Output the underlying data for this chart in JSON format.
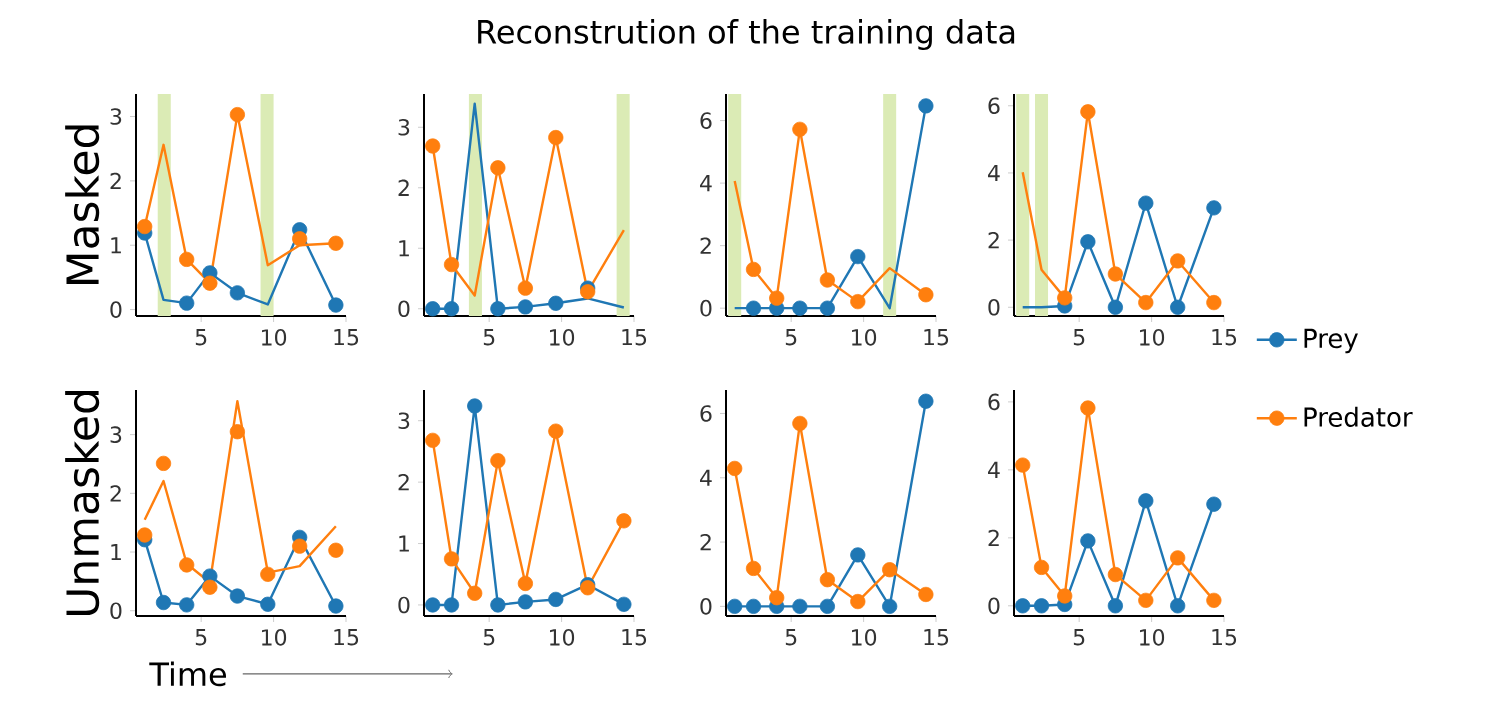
{
  "chart_data": [
    {
      "type": "line",
      "annotations": [
        "Reconstrution of the training data"
      ],
      "ylabel": "Masked",
      "x": [
        1.1,
        2.4,
        4.0,
        5.6,
        7.5,
        9.6,
        11.8,
        14.3
      ],
      "xlim": [
        0.5,
        15
      ],
      "xticks": [
        5,
        10,
        15
      ],
      "ylim": [
        -0.1,
        3.35
      ],
      "yticks": [
        0,
        1,
        2,
        3
      ],
      "marker": "circle",
      "bands": [
        {
          "axis": "x",
          "from": 2.0,
          "to": 2.9,
          "color": "#dbebb5"
        },
        {
          "axis": "x",
          "from": 9.1,
          "to": 10.0,
          "color": "#dbebb5"
        }
      ],
      "series": [
        {
          "marker": "none",
          "color": "#1f77b4",
          "values": [
            1.19,
            0.15,
            0.1,
            0.57,
            0.26,
            0.08,
            1.24,
            0.07
          ]
        },
        {
          "marker": "none",
          "color": "#ff7f0e",
          "values": [
            1.29,
            2.56,
            0.78,
            0.41,
            3.03,
            0.69,
            1.0,
            1.03
          ]
        },
        {
          "type": "scatter",
          "color": "#1f77b4",
          "values": [
            1.19,
            null,
            0.1,
            0.57,
            0.26,
            null,
            1.24,
            0.07
          ]
        },
        {
          "type": "scatter",
          "color": "#ff7f0e",
          "values": [
            1.29,
            null,
            0.78,
            0.41,
            3.03,
            null,
            1.1,
            1.03
          ]
        }
      ]
    },
    {
      "type": "line",
      "x": [
        1.1,
        2.4,
        4.0,
        5.6,
        7.5,
        9.6,
        11.8,
        14.3
      ],
      "xlim": [
        0.5,
        15
      ],
      "xticks": [
        5,
        10,
        15
      ],
      "ylim": [
        -0.12,
        3.55
      ],
      "yticks": [
        0,
        1,
        2,
        3
      ],
      "marker": "circle",
      "bands": [
        {
          "axis": "x",
          "from": 3.6,
          "to": 4.5,
          "color": "#dbebb5"
        },
        {
          "axis": "x",
          "from": 13.8,
          "to": 14.7,
          "color": "#dbebb5"
        }
      ],
      "series": [
        {
          "marker": "none",
          "color": "#1f77b4",
          "values": [
            0,
            0,
            3.39,
            0,
            0.03,
            0.09,
            0.17,
            0.02
          ]
        },
        {
          "marker": "none",
          "color": "#ff7f0e",
          "values": [
            2.69,
            0.73,
            0.22,
            2.33,
            0.34,
            2.83,
            0.28,
            1.3
          ]
        },
        {
          "type": "scatter",
          "color": "#1f77b4",
          "values": [
            0,
            0,
            null,
            0,
            0.03,
            0.09,
            0.34,
            null
          ]
        },
        {
          "type": "scatter",
          "color": "#ff7f0e",
          "values": [
            2.69,
            0.73,
            null,
            2.33,
            0.34,
            2.83,
            0.28,
            null
          ]
        }
      ]
    },
    {
      "type": "line",
      "x": [
        1.1,
        2.4,
        4.0,
        5.6,
        7.5,
        9.6,
        11.8,
        14.3
      ],
      "xlim": [
        0.5,
        15
      ],
      "xticks": [
        5,
        10,
        15
      ],
      "ylim": [
        -0.25,
        6.85
      ],
      "yticks": [
        0,
        2,
        4,
        6
      ],
      "marker": "circle",
      "bands": [
        {
          "axis": "x",
          "from": 0.65,
          "to": 1.55,
          "color": "#dbebb5"
        },
        {
          "axis": "x",
          "from": 11.35,
          "to": 12.25,
          "color": "#dbebb5"
        }
      ],
      "series": [
        {
          "marker": "none",
          "color": "#1f77b4",
          "values": [
            0,
            0,
            0,
            0,
            0,
            1.65,
            0,
            6.47
          ]
        },
        {
          "marker": "none",
          "color": "#ff7f0e",
          "values": [
            4.07,
            1.24,
            0.32,
            5.72,
            0.9,
            0.21,
            1.28,
            0.43
          ]
        },
        {
          "type": "scatter",
          "color": "#1f77b4",
          "values": [
            null,
            0,
            0,
            0,
            0,
            1.65,
            null,
            6.47
          ]
        },
        {
          "type": "scatter",
          "color": "#ff7f0e",
          "values": [
            null,
            1.24,
            0.32,
            5.72,
            0.9,
            0.21,
            null,
            0.43
          ]
        }
      ]
    },
    {
      "type": "line",
      "x": [
        1.1,
        2.4,
        4.0,
        5.6,
        7.5,
        9.6,
        11.8,
        14.3
      ],
      "xlim": [
        0.5,
        15
      ],
      "xticks": [
        5,
        10,
        15
      ],
      "ylim": [
        -0.26,
        6.35
      ],
      "yticks": [
        0,
        2,
        4,
        6
      ],
      "marker": "circle",
      "legend": "right",
      "bands": [
        {
          "axis": "x",
          "from": 0.65,
          "to": 1.55,
          "color": "#dbebb5"
        },
        {
          "axis": "x",
          "from": 1.95,
          "to": 2.85,
          "color": "#dbebb5"
        }
      ],
      "series": [
        {
          "marker": "none",
          "color": "#1f77b4",
          "values": [
            0,
            0,
            0.04,
            1.95,
            0,
            3.1,
            0,
            2.96
          ]
        },
        {
          "marker": "none",
          "color": "#ff7f0e",
          "values": [
            4.02,
            1.12,
            0.28,
            5.82,
            0.99,
            0.14,
            1.38,
            0.14
          ]
        },
        {
          "type": "scatter",
          "name": "Prey",
          "color": "#1f77b4",
          "values": [
            null,
            null,
            0.04,
            1.95,
            0,
            3.1,
            0,
            2.96
          ]
        },
        {
          "type": "scatter",
          "name": "Predator",
          "color": "#ff7f0e",
          "values": [
            null,
            null,
            0.28,
            5.82,
            0.99,
            0.14,
            1.38,
            0.14
          ]
        }
      ]
    },
    {
      "type": "line",
      "ylabel": "Unmasked",
      "xlabel": "Time",
      "x": [
        1.1,
        2.4,
        4.0,
        5.6,
        7.5,
        9.6,
        11.8,
        14.3
      ],
      "xlim": [
        0.5,
        15
      ],
      "xticks": [
        5,
        10,
        15
      ],
      "ylim": [
        -0.09,
        3.76
      ],
      "yticks": [
        0,
        1,
        2,
        3
      ],
      "marker": "circle",
      "series": [
        {
          "marker": "none",
          "color": "#1f77b4",
          "values": [
            1.21,
            0.14,
            0.1,
            0.59,
            0.25,
            0.11,
            1.25,
            0.08
          ]
        },
        {
          "marker": "none",
          "color": "#ff7f0e",
          "values": [
            1.55,
            2.21,
            0.8,
            0.48,
            3.57,
            0.65,
            0.76,
            1.44
          ]
        },
        {
          "type": "scatter",
          "color": "#1f77b4",
          "values": [
            1.21,
            0.14,
            0.1,
            0.59,
            0.25,
            0.11,
            1.25,
            0.08
          ]
        },
        {
          "type": "scatter",
          "color": "#ff7f0e",
          "values": [
            1.29,
            2.51,
            0.78,
            0.4,
            3.05,
            0.62,
            1.1,
            1.03
          ]
        }
      ]
    },
    {
      "type": "line",
      "x": [
        1.1,
        2.4,
        4.0,
        5.6,
        7.5,
        9.6,
        11.8,
        14.3
      ],
      "xlim": [
        0.5,
        15
      ],
      "xticks": [
        5,
        10,
        15
      ],
      "ylim": [
        -0.18,
        3.5
      ],
      "yticks": [
        0,
        1,
        2,
        3
      ],
      "marker": "circle",
      "series": [
        {
          "marker": "none",
          "color": "#1f77b4",
          "values": [
            0,
            0,
            3.24,
            0,
            0.05,
            0.09,
            0.33,
            0.01
          ]
        },
        {
          "marker": "none",
          "color": "#ff7f0e",
          "values": [
            2.68,
            0.75,
            0.19,
            2.35,
            0.35,
            2.83,
            0.28,
            1.37
          ]
        },
        {
          "type": "scatter",
          "color": "#1f77b4",
          "values": [
            0,
            0,
            3.24,
            0,
            0.05,
            0.09,
            0.33,
            0.01
          ]
        },
        {
          "type": "scatter",
          "color": "#ff7f0e",
          "values": [
            2.68,
            0.75,
            0.19,
            2.35,
            0.35,
            2.83,
            0.28,
            1.37
          ]
        }
      ]
    },
    {
      "type": "line",
      "x": [
        1.1,
        2.4,
        4.0,
        5.6,
        7.5,
        9.6,
        11.8,
        14.3
      ],
      "xlim": [
        0.5,
        15
      ],
      "xticks": [
        5,
        10,
        15
      ],
      "ylim": [
        -0.3,
        6.73
      ],
      "yticks": [
        0,
        2,
        4,
        6
      ],
      "marker": "circle",
      "series": [
        {
          "marker": "none",
          "color": "#1f77b4",
          "values": [
            0,
            0,
            0,
            0,
            0,
            1.6,
            0,
            6.38
          ]
        },
        {
          "marker": "none",
          "color": "#ff7f0e",
          "values": [
            4.29,
            1.18,
            0.27,
            5.69,
            0.83,
            0.15,
            1.14,
            0.37
          ]
        },
        {
          "type": "scatter",
          "color": "#1f77b4",
          "values": [
            0,
            0,
            0,
            0,
            0,
            1.6,
            0,
            6.38
          ]
        },
        {
          "type": "scatter",
          "color": "#ff7f0e",
          "values": [
            4.29,
            1.18,
            0.27,
            5.69,
            0.83,
            0.15,
            1.14,
            0.37
          ]
        }
      ]
    },
    {
      "type": "line",
      "x": [
        1.1,
        2.4,
        4.0,
        5.6,
        7.5,
        9.6,
        11.8,
        14.3
      ],
      "xlim": [
        0.5,
        15
      ],
      "xticks": [
        5,
        10,
        15
      ],
      "ylim": [
        -0.3,
        6.35
      ],
      "yticks": [
        0,
        2,
        4,
        6
      ],
      "marker": "circle",
      "series": [
        {
          "marker": "none",
          "color": "#1f77b4",
          "values": [
            0,
            0,
            0.04,
            1.91,
            0,
            3.09,
            0,
            2.99
          ]
        },
        {
          "marker": "none",
          "color": "#ff7f0e",
          "values": [
            4.14,
            1.13,
            0.29,
            5.82,
            0.92,
            0.16,
            1.41,
            0.16
          ]
        },
        {
          "type": "scatter",
          "color": "#1f77b4",
          "values": [
            0,
            0,
            0.04,
            1.91,
            0,
            3.09,
            0,
            2.99
          ]
        },
        {
          "type": "scatter",
          "color": "#ff7f0e",
          "values": [
            4.14,
            1.13,
            0.29,
            5.82,
            0.92,
            0.16,
            1.41,
            0.16
          ]
        }
      ]
    }
  ]
}
